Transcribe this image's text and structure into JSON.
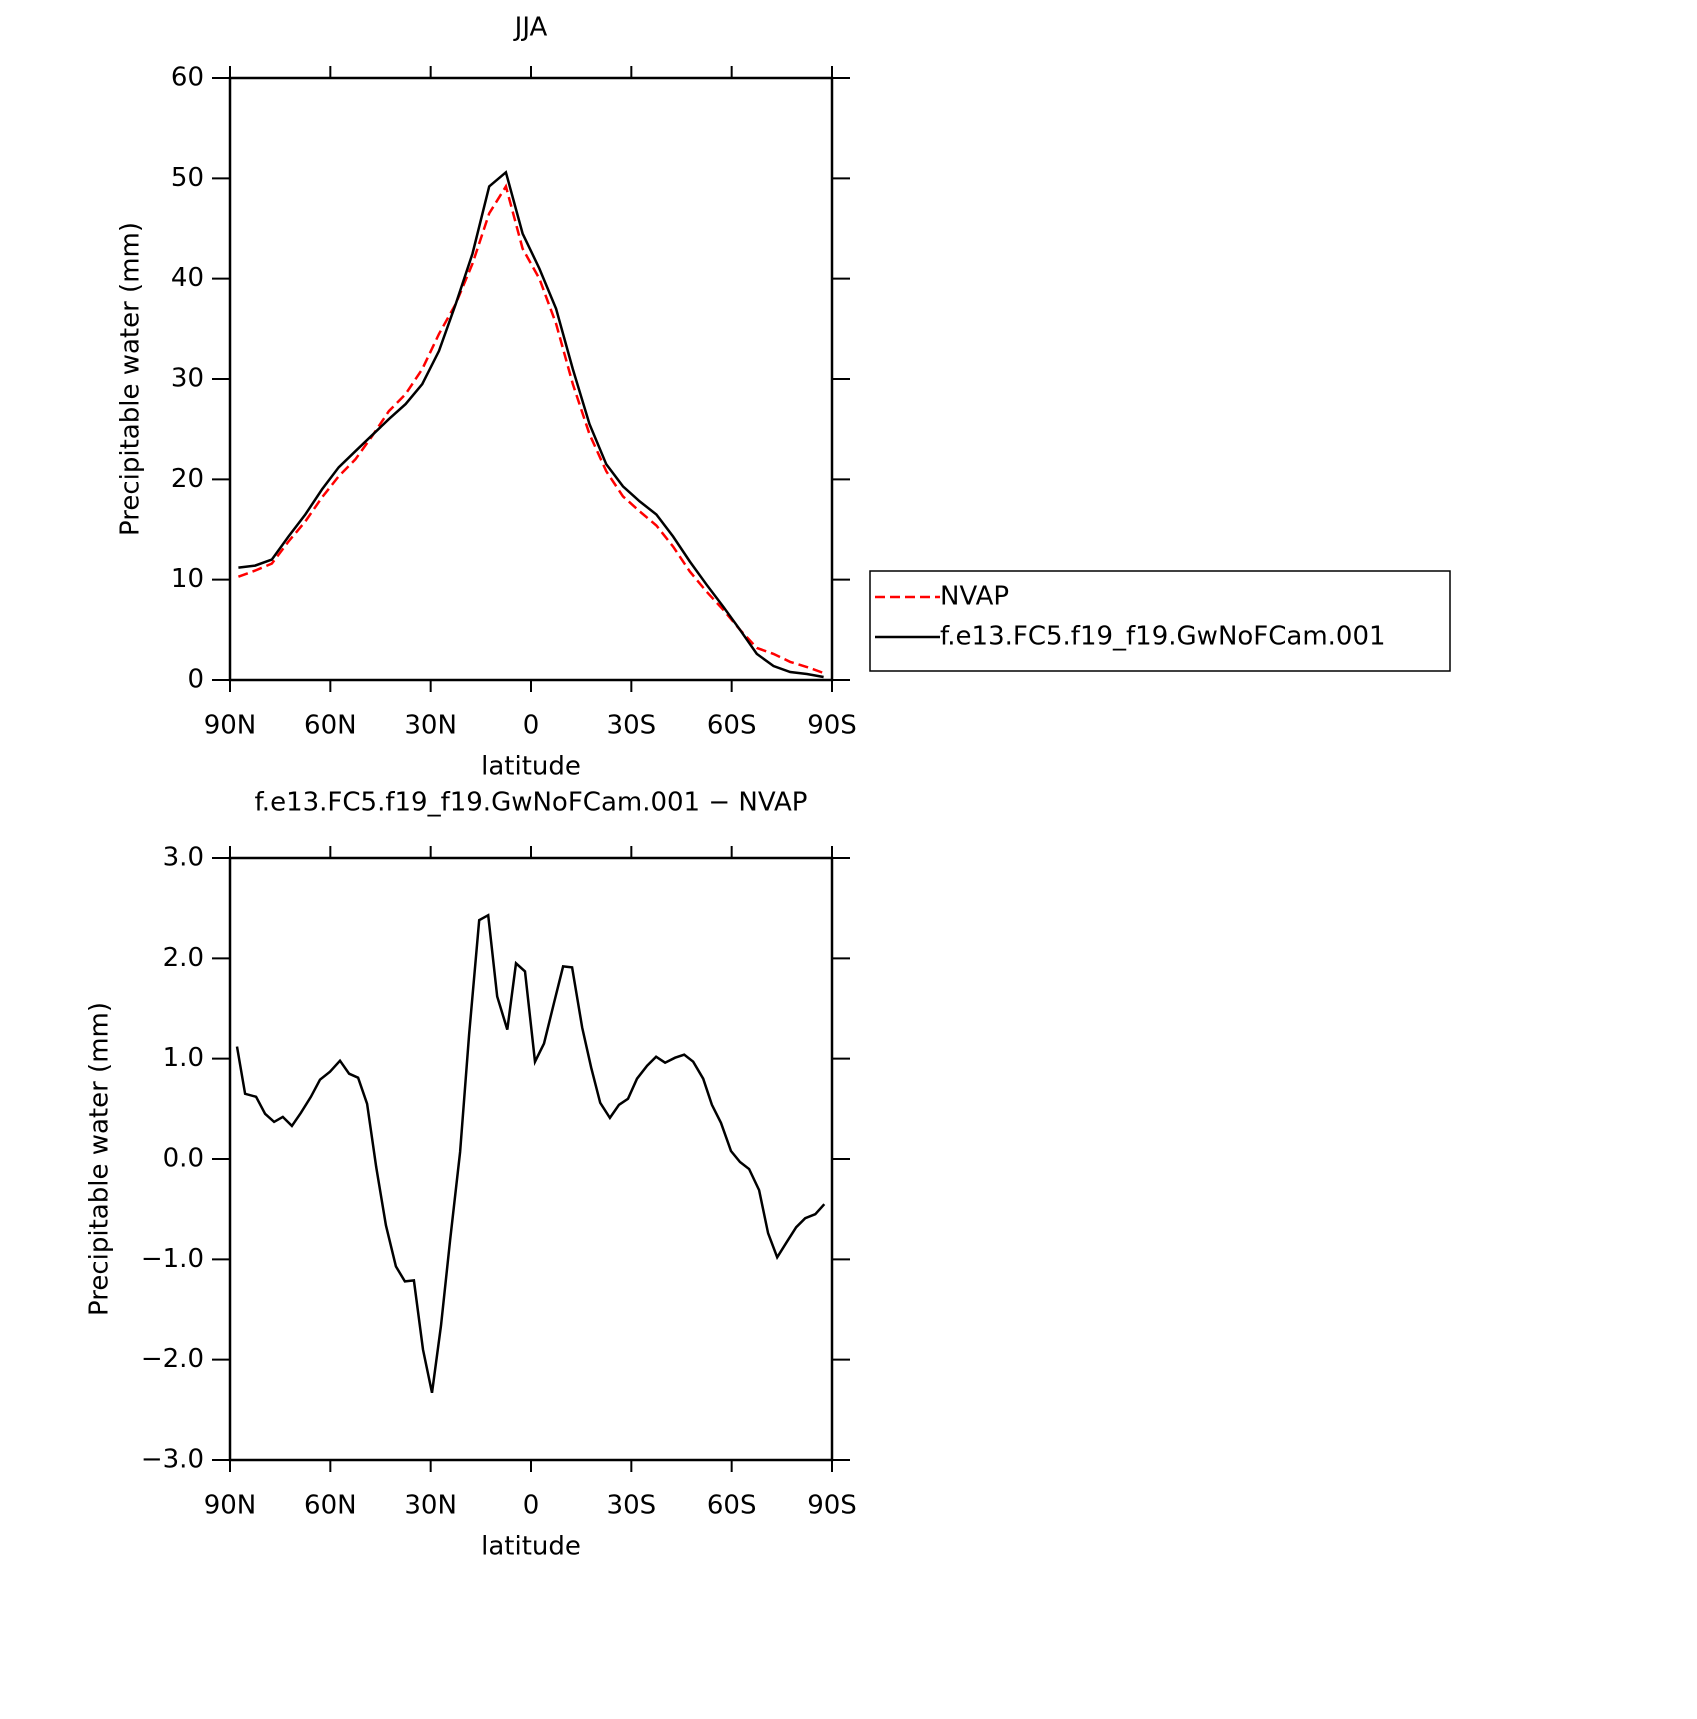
{
  "chart_data": [
    {
      "type": "line",
      "title": "JJA",
      "xlabel": "latitude",
      "ylabel": "Precipitable water (mm)",
      "xlim": [
        90,
        -90
      ],
      "xticks": [
        {
          "value": 90,
          "label": "90N"
        },
        {
          "value": 60,
          "label": "60N"
        },
        {
          "value": 30,
          "label": "30N"
        },
        0,
        {
          "value": -30,
          "label": "30S"
        },
        {
          "value": -60,
          "label": "60S"
        },
        {
          "value": -90,
          "label": "90S"
        }
      ],
      "ylim": [
        0,
        60
      ],
      "yticks": [
        0,
        10,
        20,
        30,
        40,
        50,
        60
      ],
      "legend": "right",
      "x": [
        87.5,
        82.5,
        77.5,
        72.5,
        67.5,
        62.5,
        57.5,
        52.5,
        47.5,
        42.5,
        37.5,
        32.5,
        27.5,
        22.5,
        17.5,
        12.5,
        7.5,
        2.5,
        -2.5,
        -7.5,
        -12.5,
        -17.5,
        -22.5,
        -27.5,
        -32.5,
        -37.5,
        -42.5,
        -47.5,
        -52.5,
        -57.5,
        -62.5,
        -67.5,
        -72.5,
        -77.5,
        -82.5,
        -87.5
      ],
      "series": [
        {
          "name": "NVAP",
          "color": "#ff0000",
          "style": "dashed",
          "values": [
            10.3,
            10.9,
            11.6,
            13.8,
            15.8,
            18.2,
            20.3,
            22.0,
            24.3,
            26.8,
            28.5,
            31.0,
            34.5,
            37.5,
            41.5,
            46.5,
            49.2,
            43.0,
            40.0,
            35.5,
            29.5,
            24.5,
            20.8,
            18.3,
            16.8,
            15.4,
            13.3,
            10.8,
            8.8,
            7.0,
            5.0,
            3.2,
            2.6,
            1.8,
            1.3,
            0.7
          ]
        },
        {
          "name": "f.e13.FC5.f19_f19.GwNoFCam.001",
          "color": "#000000",
          "style": "solid",
          "values": [
            11.2,
            11.4,
            12.0,
            14.3,
            16.5,
            19.0,
            21.2,
            22.8,
            24.4,
            26.0,
            27.5,
            29.5,
            32.8,
            37.5,
            42.5,
            49.2,
            50.6,
            44.5,
            41.0,
            37.0,
            31.0,
            25.5,
            21.5,
            19.3,
            17.8,
            16.5,
            14.3,
            11.8,
            9.5,
            7.3,
            5.0,
            2.6,
            1.4,
            0.8,
            0.6,
            0.3
          ]
        }
      ]
    },
    {
      "type": "line",
      "title": "f.e13.FC5.f19_f19.GwNoFCam.001 − NVAP",
      "xlabel": "latitude",
      "ylabel": "Precipitable water (mm)",
      "xlim": [
        90,
        -90
      ],
      "xticks": [
        {
          "value": 90,
          "label": "90N"
        },
        {
          "value": 60,
          "label": "60N"
        },
        {
          "value": 30,
          "label": "30N"
        },
        0,
        {
          "value": -30,
          "label": "30S"
        },
        {
          "value": -60,
          "label": "60S"
        },
        {
          "value": -90,
          "label": "90S"
        }
      ],
      "ylim": [
        -3,
        3
      ],
      "yticks": [
        {
          "value": -3,
          "label": "−3.0"
        },
        {
          "value": -2,
          "label": "−2.0"
        },
        {
          "value": -1,
          "label": "−1.0"
        },
        {
          "value": 0,
          "label": "0.0"
        },
        {
          "value": 1,
          "label": "1.0"
        },
        {
          "value": 2,
          "label": "2.0"
        },
        {
          "value": 3,
          "label": "3.0"
        }
      ],
      "x": [
        87.9,
        85.5,
        82.2,
        79.5,
        76.8,
        74.2,
        71.5,
        68.8,
        65.8,
        63.1,
        60.1,
        57.1,
        54.4,
        51.7,
        49.0,
        46.3,
        43.4,
        40.4,
        37.7,
        35.0,
        32.3,
        29.6,
        26.9,
        24.2,
        21.2,
        18.5,
        15.5,
        12.8,
        10.1,
        7.1,
        4.5,
        1.8,
        -1.2,
        -3.9,
        -6.9,
        -9.6,
        -12.3,
        -15.3,
        -18.0,
        -20.7,
        -23.6,
        -26.3,
        -29.0,
        -31.7,
        -34.7,
        -37.4,
        -40.1,
        -43.1,
        -45.8,
        -48.5,
        -51.5,
        -54.1,
        -56.8,
        -59.8,
        -62.5,
        -65.2,
        -68.2,
        -70.9,
        -73.6,
        -76.6,
        -79.3,
        -82.0,
        -85.0,
        -87.7
      ],
      "series": [
        {
          "color": "#000000",
          "style": "solid",
          "values": [
            1.12,
            0.65,
            0.62,
            0.45,
            0.37,
            0.42,
            0.33,
            0.46,
            0.62,
            0.79,
            0.87,
            0.98,
            0.85,
            0.81,
            0.55,
            -0.08,
            -0.66,
            -1.07,
            -1.22,
            -1.21,
            -1.9,
            -2.33,
            -1.66,
            -0.81,
            0.07,
            1.24,
            2.38,
            2.43,
            1.62,
            1.29,
            1.95,
            1.87,
            0.97,
            1.15,
            1.56,
            1.92,
            1.91,
            1.31,
            0.91,
            0.56,
            0.41,
            0.54,
            0.6,
            0.8,
            0.93,
            1.02,
            0.96,
            1.01,
            1.04,
            0.97,
            0.8,
            0.54,
            0.36,
            0.08,
            -0.03,
            -0.1,
            -0.31,
            -0.74,
            -0.98,
            -0.82,
            -0.68,
            -0.59,
            -0.55,
            -0.45
          ]
        }
      ]
    }
  ]
}
